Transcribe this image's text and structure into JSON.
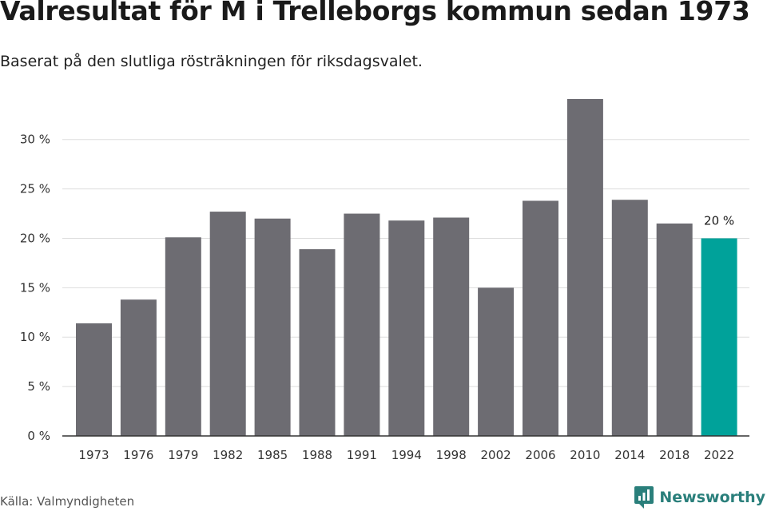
{
  "header": {
    "title": "Valresultat för M i Trelleborgs kommun sedan 1973",
    "subtitle": "Baserat på den slutliga rösträkningen för riksdagsvalet."
  },
  "footer": {
    "source": "Källa: Valmyndigheten",
    "brand": "Newsworthy",
    "brand_icon": "newsworthy-logo-icon"
  },
  "colors": {
    "bar": "#6d6c72",
    "highlight": "#00a29a",
    "grid": "#dddddd",
    "axis": "#333333",
    "brand": "#2a7f7b"
  },
  "chart_data": {
    "type": "bar",
    "title": "Valresultat för M i Trelleborgs kommun sedan 1973",
    "subtitle": "Baserat på den slutliga rösträkningen för riksdagsvalet.",
    "xlabel": "",
    "ylabel": "",
    "categories": [
      "1973",
      "1976",
      "1979",
      "1982",
      "1985",
      "1988",
      "1991",
      "1994",
      "1998",
      "2002",
      "2006",
      "2010",
      "2014",
      "2018",
      "2022"
    ],
    "values": [
      11.4,
      13.8,
      20.1,
      22.7,
      22.0,
      18.9,
      22.5,
      21.8,
      22.1,
      15.0,
      23.8,
      34.1,
      23.9,
      21.5,
      20.0
    ],
    "ylim": [
      0,
      34.1
    ],
    "yticks": [
      0,
      5,
      10,
      15,
      20,
      25,
      30
    ],
    "ytick_labels": [
      "0 %",
      "5 %",
      "10 %",
      "15 %",
      "20 %",
      "25 %",
      "30 %"
    ],
    "grid": true,
    "highlight_index": 14,
    "annotations": [
      {
        "category": "2022",
        "text": "20 %"
      }
    ]
  }
}
